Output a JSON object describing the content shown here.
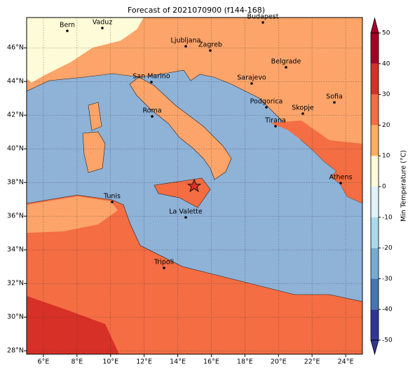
{
  "title": "Forecast of 2021070900 (f144-168)",
  "map": {
    "xlim": [
      5,
      25
    ],
    "ylim": [
      27.8,
      47.8
    ],
    "grid": true,
    "xticks": [
      {
        "value": 6,
        "label": "6°E"
      },
      {
        "value": 8,
        "label": "8°E"
      },
      {
        "value": 10,
        "label": "10°E"
      },
      {
        "value": 12,
        "label": "12°E"
      },
      {
        "value": 14,
        "label": "14°E"
      },
      {
        "value": 16,
        "label": "16°E"
      },
      {
        "value": 18,
        "label": "18°E"
      },
      {
        "value": 20,
        "label": "20°E"
      },
      {
        "value": 22,
        "label": "22°E"
      },
      {
        "value": 24,
        "label": "24°E"
      }
    ],
    "yticks": [
      {
        "value": 28,
        "label": "28°N"
      },
      {
        "value": 30,
        "label": "30°N"
      },
      {
        "value": 32,
        "label": "32°N"
      },
      {
        "value": 34,
        "label": "34°N"
      },
      {
        "value": 36,
        "label": "36°N"
      },
      {
        "value": 38,
        "label": "38°N"
      },
      {
        "value": 40,
        "label": "40°N"
      },
      {
        "value": 42,
        "label": "42°N"
      },
      {
        "value": 44,
        "label": "44°N"
      },
      {
        "value": 46,
        "label": "46°N"
      }
    ],
    "cities": [
      "Bern",
      "Vaduz",
      "Budapest",
      "Ljubljana",
      "Zagreb",
      "Belgrade",
      "San Marino",
      "Sarajevo",
      "Sofia",
      "Roma",
      "Podgorica",
      "Skopje",
      "Tirana",
      "Athens",
      "Tunis",
      "La Valette",
      "Tripoli"
    ]
  },
  "colorbar": {
    "label": "Min Temperature (°C)",
    "lim": [
      -50,
      50
    ],
    "ticks": [
      -50,
      -40,
      -30,
      -20,
      -10,
      0,
      10,
      20,
      30,
      40,
      50
    ],
    "colors": [
      "#313695",
      "#4575b4",
      "#74add1",
      "#abd9e9",
      "#e0f3f8",
      "#fefbd8",
      "#fdae61",
      "#f46d43",
      "#d73027",
      "#a50026"
    ]
  }
}
